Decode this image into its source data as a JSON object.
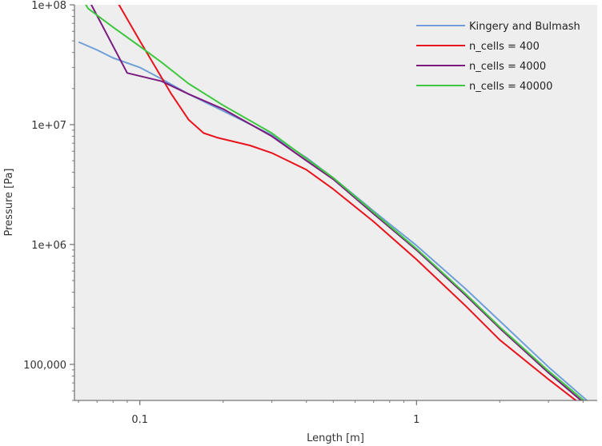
{
  "chart_data": {
    "type": "line",
    "xlabel": "Length [m]",
    "ylabel": "Pressure [Pa]",
    "xscale": "log",
    "yscale": "log",
    "xlim": [
      0.058,
      4.5
    ],
    "ylim": [
      50000,
      100000000
    ],
    "xticks": [
      {
        "value": 0.1,
        "label": "0.1"
      },
      {
        "value": 1,
        "label": "1"
      }
    ],
    "yticks": [
      {
        "value": 100000000,
        "label": "1e+08"
      },
      {
        "value": 10000000,
        "label": "1e+07"
      },
      {
        "value": 1000000,
        "label": "1e+06"
      },
      {
        "value": 100000,
        "label": "100,000"
      }
    ],
    "grid": false,
    "plot_background": "#eeeeee",
    "legend_position": "top-right",
    "series": [
      {
        "name": "Kingery and Bulmash",
        "color": "#6f9fd8",
        "points": [
          [
            0.06,
            49000000
          ],
          [
            0.07,
            42000000
          ],
          [
            0.08,
            36000000
          ],
          [
            0.1,
            30000000
          ],
          [
            0.12,
            24000000
          ],
          [
            0.15,
            18000000
          ],
          [
            0.2,
            13000000
          ],
          [
            0.3,
            8200000
          ],
          [
            0.4,
            5300000
          ],
          [
            0.5,
            3600000
          ],
          [
            0.7,
            1900000
          ],
          [
            1.0,
            980000
          ],
          [
            1.5,
            430000
          ],
          [
            2.0,
            230000
          ],
          [
            3.0,
            95000
          ],
          [
            4.4,
            44000
          ]
        ]
      },
      {
        "name": "n_cells = 400",
        "color": "#e8131c",
        "points": [
          [
            0.083,
            105000000
          ],
          [
            0.1,
            50000000
          ],
          [
            0.13,
            18000000
          ],
          [
            0.15,
            11000000
          ],
          [
            0.17,
            8500000
          ],
          [
            0.19,
            7800000
          ],
          [
            0.25,
            6700000
          ],
          [
            0.3,
            5800000
          ],
          [
            0.4,
            4200000
          ],
          [
            0.5,
            2900000
          ],
          [
            0.7,
            1550000
          ],
          [
            1.0,
            750000
          ],
          [
            1.5,
            310000
          ],
          [
            2.0,
            160000
          ],
          [
            3.0,
            75000
          ],
          [
            4.1,
            43000
          ]
        ]
      },
      {
        "name": "n_cells = 4000",
        "color": "#7b1a7f",
        "points": [
          [
            0.066,
            105000000
          ],
          [
            0.075,
            60000000
          ],
          [
            0.09,
            27000000
          ],
          [
            0.12,
            23000000
          ],
          [
            0.15,
            18000000
          ],
          [
            0.2,
            13500000
          ],
          [
            0.3,
            8000000
          ],
          [
            0.4,
            5000000
          ],
          [
            0.5,
            3500000
          ],
          [
            0.7,
            1800000
          ],
          [
            1.0,
            900000
          ],
          [
            1.5,
            380000
          ],
          [
            2.0,
            200000
          ],
          [
            3.0,
            85000
          ],
          [
            4.2,
            44000
          ]
        ]
      },
      {
        "name": "n_cells = 40000",
        "color": "#3fc73f",
        "points": [
          [
            0.063,
            105000000
          ],
          [
            0.065,
            93000000
          ],
          [
            0.08,
            65000000
          ],
          [
            0.1,
            45000000
          ],
          [
            0.12,
            33000000
          ],
          [
            0.15,
            22000000
          ],
          [
            0.2,
            14500000
          ],
          [
            0.3,
            8500000
          ],
          [
            0.4,
            5200000
          ],
          [
            0.5,
            3600000
          ],
          [
            0.7,
            1850000
          ],
          [
            1.0,
            920000
          ],
          [
            1.5,
            390000
          ],
          [
            2.0,
            205000
          ],
          [
            3.0,
            88000
          ],
          [
            4.3,
            44000
          ]
        ]
      }
    ]
  }
}
